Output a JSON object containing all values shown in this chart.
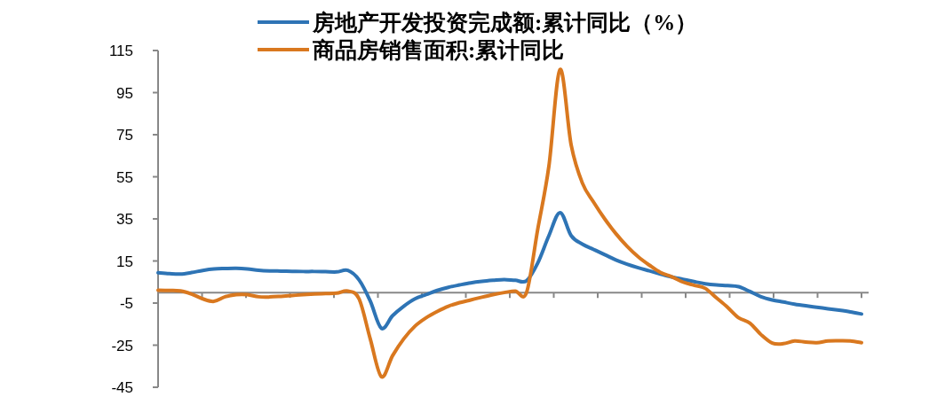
{
  "chart_data": {
    "type": "line",
    "legend": "top",
    "categories": [
      null,
      null,
      null,
      null,
      null,
      null,
      null,
      null,
      null,
      null,
      null,
      null,
      null,
      null,
      null,
      null,
      null,
      null,
      null,
      null,
      null,
      null,
      null,
      null,
      null,
      null,
      null,
      null,
      null,
      null,
      null,
      null,
      null,
      null,
      null,
      null,
      null,
      null,
      null,
      null,
      null,
      null,
      null,
      null,
      null,
      null,
      null,
      null,
      null,
      null,
      null,
      null,
      null,
      null,
      null,
      null,
      null,
      null,
      null,
      null,
      null,
      null,
      null,
      null
    ],
    "ylim": [
      -45,
      115
    ],
    "yticks": [
      -45,
      -25,
      -5,
      15,
      35,
      55,
      75,
      95,
      115
    ],
    "series": [
      {
        "name": "房地产开发投资完成额:累计同比（%）",
        "color": "#2e74b5",
        "values": [
          9.4,
          9,
          8.8,
          9.5,
          10.5,
          11.2,
          11.4,
          11.5,
          11.2,
          10.6,
          10.3,
          10.2,
          10.1,
          10,
          10,
          9.9,
          9.8,
          10.5,
          6,
          -4,
          -17,
          -11,
          -6.5,
          -3,
          -1,
          1,
          2.5,
          3.6,
          4.6,
          5.3,
          5.8,
          6.2,
          5.8,
          5.6,
          14,
          27,
          38,
          27,
          23,
          20.5,
          18,
          15.5,
          13.5,
          11.8,
          10.3,
          8.8,
          7.4,
          6.3,
          5.2,
          4.2,
          3.6,
          3.3,
          2.8,
          0.5,
          -2,
          -3.5,
          -4.5,
          -5.5,
          -6.3,
          -7,
          -7.7,
          -8.4,
          -9.2,
          -10.2
        ]
      },
      {
        "name": "商品房销售面积:累计同比",
        "color": "#d9781f",
        "values": [
          1.1,
          1,
          0.8,
          -0.7,
          -3,
          -4.2,
          -2,
          -1,
          -1,
          -2,
          -2.1,
          -1.8,
          -1.4,
          -1,
          -0.7,
          -0.5,
          -0.3,
          0.7,
          -3,
          -22,
          -40,
          -30,
          -22,
          -16,
          -12,
          -9,
          -6.5,
          -4.8,
          -3.5,
          -2.2,
          -1,
          0,
          0.7,
          0,
          30,
          60,
          106,
          70,
          52,
          43,
          35,
          28,
          22,
          17,
          13,
          9.5,
          7.5,
          5,
          3.5,
          2,
          -2.5,
          -7,
          -12,
          -14.5,
          -20,
          -24,
          -24.3,
          -23,
          -23.5,
          -23.8,
          -23,
          -22.9,
          -23,
          -23.8
        ]
      }
    ]
  }
}
